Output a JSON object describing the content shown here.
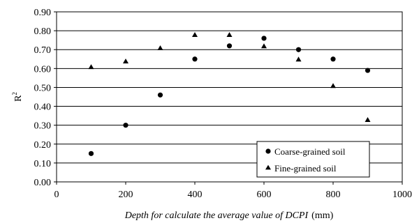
{
  "chart_data": {
    "type": "scatter",
    "xlabel_main": "Depth for calculate the average value of DCPI",
    "xlabel_unit": "(mm)",
    "ylabel_main": "R",
    "ylabel_sup": "2",
    "xlim": [
      0,
      1000
    ],
    "ylim": [
      0,
      0.9
    ],
    "x_ticks": [
      "0",
      "200",
      "400",
      "600",
      "800",
      "1000"
    ],
    "y_ticks": [
      "0.00",
      "0.10",
      "0.20",
      "0.30",
      "0.40",
      "0.50",
      "0.60",
      "0.70",
      "0.80",
      "0.90"
    ],
    "grid": "horizontal",
    "legend_position": "bottom-right",
    "series": [
      {
        "name": "Coarse-grained soil",
        "marker": "circle",
        "color": "#000000",
        "points": [
          {
            "x": 100,
            "y": 0.15
          },
          {
            "x": 200,
            "y": 0.3
          },
          {
            "x": 300,
            "y": 0.46
          },
          {
            "x": 400,
            "y": 0.65
          },
          {
            "x": 500,
            "y": 0.72
          },
          {
            "x": 600,
            "y": 0.76
          },
          {
            "x": 700,
            "y": 0.7
          },
          {
            "x": 800,
            "y": 0.65
          },
          {
            "x": 900,
            "y": 0.59
          }
        ]
      },
      {
        "name": "Fine-grained soil",
        "marker": "triangle",
        "color": "#000000",
        "points": [
          {
            "x": 100,
            "y": 0.61
          },
          {
            "x": 200,
            "y": 0.64
          },
          {
            "x": 300,
            "y": 0.71
          },
          {
            "x": 400,
            "y": 0.78
          },
          {
            "x": 500,
            "y": 0.78
          },
          {
            "x": 600,
            "y": 0.72
          },
          {
            "x": 700,
            "y": 0.65
          },
          {
            "x": 800,
            "y": 0.51
          },
          {
            "x": 900,
            "y": 0.33
          }
        ]
      }
    ]
  }
}
